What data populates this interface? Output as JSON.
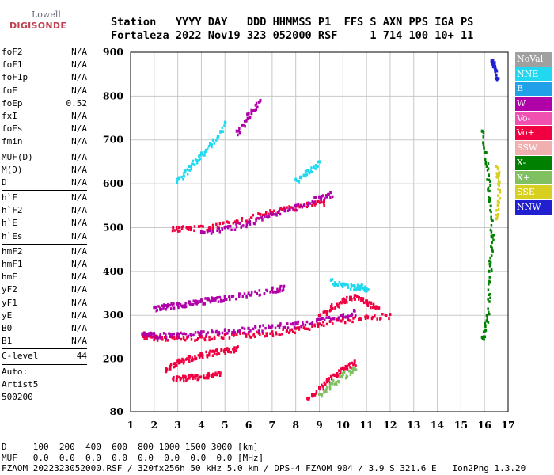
{
  "logo": {
    "line1": "Lowell",
    "line2": "DIGISONDE"
  },
  "header": {
    "labels_line": "Station   YYYY DAY   DDD HHMMSS P1  FFS S AXN PPS IGA PS",
    "values_line": "Fortaleza 2022 Nov19 323 052000 RSF     1 714 100 10+ 11"
  },
  "params": {
    "group1": [
      {
        "name": "foF2",
        "value": "N/A"
      },
      {
        "name": "foF1",
        "value": "N/A"
      },
      {
        "name": "foF1p",
        "value": "N/A"
      },
      {
        "name": "foE",
        "value": "N/A"
      },
      {
        "name": "foEp",
        "value": "0.52"
      },
      {
        "name": "fxI",
        "value": "N/A"
      },
      {
        "name": "foEs",
        "value": "N/A"
      },
      {
        "name": "fmin",
        "value": "N/A"
      }
    ],
    "group2": [
      {
        "name": "MUF(D)",
        "value": "N/A"
      },
      {
        "name": "M(D)",
        "value": "N/A"
      },
      {
        "name": "D",
        "value": "N/A"
      }
    ],
    "group3": [
      {
        "name": "h`F",
        "value": "N/A"
      },
      {
        "name": "h`F2",
        "value": "N/A"
      },
      {
        "name": "h`E",
        "value": "N/A"
      },
      {
        "name": "h`Es",
        "value": "N/A"
      }
    ],
    "group4": [
      {
        "name": "hmF2",
        "value": "N/A"
      },
      {
        "name": "hmF1",
        "value": "N/A"
      },
      {
        "name": "hmE",
        "value": "N/A"
      },
      {
        "name": "yF2",
        "value": "N/A"
      },
      {
        "name": "yF1",
        "value": "N/A"
      },
      {
        "name": "yE",
        "value": "N/A"
      },
      {
        "name": "B0",
        "value": "N/A"
      },
      {
        "name": "B1",
        "value": "N/A"
      }
    ],
    "clevel": {
      "name": "C-level",
      "value": "44"
    },
    "auto": [
      "Auto:",
      "Artist5",
      "500200"
    ]
  },
  "legend": [
    {
      "label": "NoVal",
      "color": "#a0a0a0"
    },
    {
      "label": "NNE",
      "color": "#20d8f0"
    },
    {
      "label": "E",
      "color": "#20a0e8"
    },
    {
      "label": "W",
      "color": "#b000a8"
    },
    {
      "label": "Vo-",
      "color": "#f050b0"
    },
    {
      "label": "Vo+",
      "color": "#f00040"
    },
    {
      "label": "SSW",
      "color": "#f0b0b0"
    },
    {
      "label": "X-",
      "color": "#008000"
    },
    {
      "label": "X+",
      "color": "#80c060"
    },
    {
      "label": "SSE",
      "color": "#d8d020"
    },
    {
      "label": "NNW",
      "color": "#2020d0"
    }
  ],
  "footer": {
    "line1": "D     100  200  400  600  800 1000 1500 3000 [km]",
    "line2": "MUF   0.0  0.0  0.0  0.0  0.0  0.0  0.0  0.0 [MHz]",
    "line3": "FZAOM_2022323052000.RSF / 320fx256h 50 kHz 5.0 km / DPS-4 FZAOM 904 / 3.9 S 321.6 E   Ion2Png 1.3.20"
  },
  "chart_data": {
    "type": "scatter",
    "title": "",
    "xlabel": "",
    "ylabel": "",
    "xlim": [
      1,
      17
    ],
    "ylim": [
      80,
      900
    ],
    "x_ticks": [
      1,
      2,
      3,
      4,
      5,
      6,
      7,
      8,
      9,
      10,
      11,
      12,
      13,
      14,
      15,
      16,
      17
    ],
    "y_ticks": [
      80,
      200,
      300,
      400,
      500,
      600,
      700,
      800,
      900
    ],
    "grid": true,
    "traces": [
      {
        "name": "E",
        "color": "#f00040",
        "points": [
          [
            1.5,
            255
          ],
          [
            2,
            252
          ],
          [
            3,
            250
          ],
          [
            4,
            252
          ],
          [
            5,
            255
          ],
          [
            6,
            258
          ],
          [
            7,
            262
          ],
          [
            8,
            270
          ],
          [
            9,
            280
          ],
          [
            10,
            292
          ],
          [
            11,
            298
          ],
          [
            12,
            302
          ]
        ]
      },
      {
        "name": "E",
        "color": "#b000a8",
        "points": [
          [
            1.5,
            258
          ],
          [
            2,
            256
          ],
          [
            3,
            258
          ],
          [
            4,
            262
          ],
          [
            5,
            266
          ],
          [
            6,
            270
          ],
          [
            7,
            276
          ],
          [
            8,
            282
          ],
          [
            9,
            290
          ],
          [
            10,
            300
          ],
          [
            10.5,
            310
          ]
        ]
      },
      {
        "name": "E",
        "color": "#b000a8",
        "points": [
          [
            2,
            318
          ],
          [
            2.5,
            322
          ],
          [
            3,
            326
          ],
          [
            3.5,
            330
          ],
          [
            4,
            334
          ],
          [
            4.5,
            338
          ],
          [
            5,
            342
          ],
          [
            6,
            350
          ],
          [
            7,
            360
          ],
          [
            7.5,
            366
          ]
        ]
      },
      {
        "name": "E",
        "color": "#f00040",
        "points": [
          [
            9,
            300
          ],
          [
            9.5,
            320
          ],
          [
            10,
            335
          ],
          [
            10.5,
            345
          ],
          [
            11,
            330
          ],
          [
            11.5,
            315
          ]
        ]
      },
      {
        "name": "E",
        "color": "#20d8f0",
        "points": [
          [
            9.5,
            380
          ],
          [
            10,
            370
          ],
          [
            10.5,
            365
          ],
          [
            10.8,
            368
          ],
          [
            11,
            360
          ]
        ]
      },
      {
        "name": "E",
        "color": "#f00040",
        "points": [
          [
            2.8,
            500
          ],
          [
            3.5,
            500
          ],
          [
            4.5,
            505
          ],
          [
            5.5,
            515
          ],
          [
            6.5,
            530
          ],
          [
            7.5,
            545
          ],
          [
            8.5,
            555
          ],
          [
            9.2,
            560
          ]
        ]
      },
      {
        "name": "E",
        "color": "#b000a8",
        "points": [
          [
            4,
            490
          ],
          [
            5,
            500
          ],
          [
            6,
            512
          ],
          [
            7,
            530
          ],
          [
            8,
            550
          ],
          [
            9,
            570
          ],
          [
            9.5,
            580
          ]
        ]
      },
      {
        "name": "E",
        "color": "#f00040",
        "points": [
          [
            2.5,
            178
          ],
          [
            3,
            195
          ],
          [
            3.5,
            205
          ],
          [
            4,
            212
          ],
          [
            4.5,
            218
          ],
          [
            5,
            222
          ],
          [
            5.5,
            226
          ]
        ]
      },
      {
        "name": "E",
        "color": "#f00040",
        "points": [
          [
            2.8,
            155
          ],
          [
            3.3,
            160
          ],
          [
            3.8,
            162
          ],
          [
            4.3,
            165
          ],
          [
            4.8,
            168
          ]
        ]
      },
      {
        "name": "E",
        "color": "#f00040",
        "points": [
          [
            8.5,
            110
          ],
          [
            9,
            135
          ],
          [
            9.5,
            160
          ],
          [
            10,
            180
          ],
          [
            10.5,
            195
          ]
        ]
      },
      {
        "name": "E",
        "color": "#80c060",
        "points": [
          [
            9,
            120
          ],
          [
            9.5,
            145
          ],
          [
            10,
            165
          ],
          [
            10.5,
            180
          ]
        ]
      },
      {
        "name": "E",
        "color": "#20d8f0",
        "points": [
          [
            3,
            610
          ],
          [
            3.5,
            640
          ],
          [
            4,
            670
          ],
          [
            4.5,
            700
          ],
          [
            5,
            740
          ]
        ]
      },
      {
        "name": "E",
        "color": "#20d8f0",
        "points": [
          [
            8,
            610
          ],
          [
            8.5,
            630
          ],
          [
            9,
            650
          ]
        ]
      },
      {
        "name": "E",
        "color": "#b000a8",
        "points": [
          [
            5.5,
            720
          ],
          [
            6,
            760
          ],
          [
            6.5,
            790
          ]
        ]
      },
      {
        "name": "E",
        "color": "#008000",
        "points": [
          [
            15.9,
            250
          ],
          [
            16.1,
            300
          ],
          [
            16.2,
            400
          ],
          [
            16.3,
            480
          ],
          [
            16.2,
            560
          ],
          [
            16.1,
            640
          ],
          [
            15.9,
            720
          ]
        ]
      },
      {
        "name": "E",
        "color": "#2020d0",
        "points": [
          [
            16.5,
            840
          ],
          [
            16.4,
            870
          ],
          [
            16.3,
            880
          ]
        ]
      },
      {
        "name": "E",
        "color": "#d8d020",
        "points": [
          [
            16.5,
            520
          ],
          [
            16.6,
            600
          ],
          [
            16.5,
            640
          ]
        ]
      }
    ]
  }
}
